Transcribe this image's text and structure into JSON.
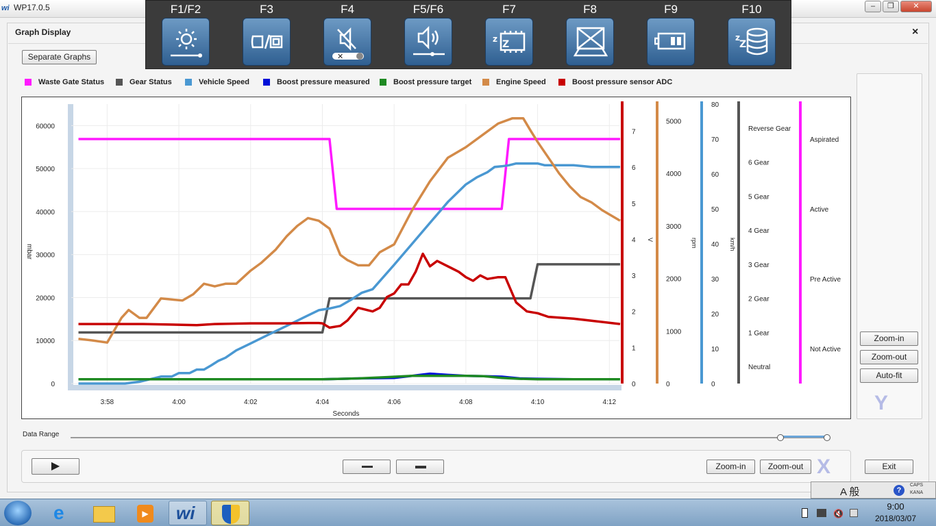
{
  "window": {
    "title": "WP17.0.5",
    "logo": "wi",
    "controls": [
      "minimize",
      "maximize",
      "close"
    ]
  },
  "fkeys": [
    {
      "key": "F1/F2",
      "icon": "brightness-icon"
    },
    {
      "key": "F3",
      "icon": "screen-mode-icon"
    },
    {
      "key": "F4",
      "icon": "sound-mute-icon"
    },
    {
      "key": "F5/F6",
      "icon": "volume-icon"
    },
    {
      "key": "F7",
      "icon": "cpu-sleep-icon"
    },
    {
      "key": "F8",
      "icon": "display-off-icon"
    },
    {
      "key": "F9",
      "icon": "battery-icon"
    },
    {
      "key": "F10",
      "icon": "disk-sleep-icon"
    }
  ],
  "panel": {
    "title": "Graph Display",
    "close": "×",
    "separate_button": "Separate Graphs"
  },
  "legend": [
    {
      "name": "Waste Gate Status",
      "color": "#ff1aff"
    },
    {
      "name": "Gear Status",
      "color": "#555555"
    },
    {
      "name": "Vehicle Speed",
      "color": "#4a98d2"
    },
    {
      "name": "Boost pressure measured",
      "color": "#0010d8"
    },
    {
      "name": "Boost pressure target",
      "color": "#1e8a22"
    },
    {
      "name": "Engine Speed",
      "color": "#d38a48"
    },
    {
      "name": "Boost pressure sensor ADC",
      "color": "#c80000"
    }
  ],
  "chart_data": {
    "type": "line",
    "xlabel": "Seconds",
    "x_ticks": [
      "3:58",
      "4:00",
      "4:02",
      "4:04",
      "4:06",
      "4:08",
      "4:10",
      "4:12"
    ],
    "x_range": [
      "3:57",
      "4:12.3"
    ],
    "grid": true,
    "legend_position": "top",
    "axes": [
      {
        "id": "mbar",
        "label": "mbar",
        "range": [
          0,
          65000
        ],
        "ticks": [
          0,
          10000,
          20000,
          30000,
          40000,
          50000,
          60000
        ],
        "side": "left",
        "color": "#222222"
      },
      {
        "id": "V",
        "label": "V",
        "range": [
          0,
          7.75
        ],
        "ticks": [
          0,
          1,
          2,
          3,
          4,
          5,
          6,
          7
        ],
        "side": "right",
        "color": "#c80000"
      },
      {
        "id": "rpm",
        "label": "rpm",
        "range": [
          0,
          5320
        ],
        "ticks": [
          0,
          1000,
          2000,
          3000,
          4000,
          5000
        ],
        "side": "right",
        "color": "#d38a48"
      },
      {
        "id": "kmh",
        "label": "km/h",
        "range": [
          0,
          80
        ],
        "ticks": [
          0,
          10,
          20,
          30,
          40,
          50,
          60,
          70,
          80
        ],
        "side": "right",
        "color": "#4a98d2"
      },
      {
        "id": "gear",
        "label": "",
        "categories": [
          "Neutral",
          "1 Gear",
          "2 Gear",
          "3 Gear",
          "4 Gear",
          "5 Gear",
          "6 Gear",
          "Reverse Gear"
        ],
        "range": [
          -0.5,
          7.7
        ],
        "side": "right",
        "color": "#555555"
      },
      {
        "id": "wg",
        "label": "",
        "categories": [
          "Not Active",
          "Pre Active",
          "Active",
          "Aspirated"
        ],
        "range": [
          -0.5,
          3.5
        ],
        "side": "right",
        "color": "#ff1aff"
      }
    ],
    "series": [
      {
        "name": "Waste Gate Status",
        "axis": "wg",
        "color": "#ff1aff",
        "x": [
          237.2,
          244.2,
          244.4,
          249.0,
          249.2,
          252.3
        ],
        "y": [
          3,
          3,
          2,
          2,
          3,
          3
        ]
      },
      {
        "name": "Gear Status",
        "axis": "gear",
        "color": "#555555",
        "x": [
          237.2,
          244.0,
          244.2,
          249.8,
          250.0,
          252.3
        ],
        "y": [
          1,
          1,
          2,
          2,
          3,
          3
        ]
      },
      {
        "name": "Vehicle Speed",
        "axis": "kmh",
        "color": "#4a98d2",
        "x": [
          237.2,
          238.0,
          238.5,
          238.9,
          239.3,
          239.5,
          239.8,
          240.0,
          240.3,
          240.5,
          240.7,
          240.9,
          241.1,
          241.3,
          241.6,
          242.0,
          242.5,
          243.0,
          243.5,
          243.9,
          244.2,
          244.5,
          244.8,
          245.1,
          245.4,
          246.0,
          246.5,
          247.0,
          247.5,
          248.0,
          248.3,
          248.6,
          248.8,
          249.0,
          249.2,
          249.4,
          249.7,
          250.0,
          250.2,
          250.5,
          250.8,
          251.0,
          251.5,
          252.3
        ],
        "y": [
          0,
          0,
          0,
          0.5,
          1.5,
          2,
          2,
          3,
          3,
          4,
          4,
          5.2,
          6.5,
          7.4,
          9.5,
          11.5,
          14,
          16.5,
          19,
          21,
          21.5,
          22.2,
          24,
          26,
          27,
          34,
          40,
          46,
          52,
          57,
          59,
          60.5,
          62,
          62.2,
          62.5,
          63,
          63,
          63,
          62.5,
          62.5,
          62.5,
          62.5,
          62,
          62
        ]
      },
      {
        "name": "Boost pressure measured",
        "axis": "mbar",
        "color": "#0010d8",
        "x": [
          237.2,
          244.0,
          245.0,
          246.0,
          246.5,
          247.0,
          247.5,
          248.0,
          248.5,
          249.0,
          249.5,
          250.0,
          251.0,
          252.3
        ],
        "y": [
          1000,
          1000,
          1200,
          1300,
          1800,
          2300,
          2000,
          1800,
          1700,
          1600,
          1200,
          1100,
          1000,
          1000
        ]
      },
      {
        "name": "Boost pressure target",
        "axis": "mbar",
        "color": "#1e8a22",
        "x": [
          237.2,
          244.0,
          245.0,
          245.8,
          246.5,
          247.2,
          248.0,
          248.5,
          249.0,
          249.5,
          250.0,
          251.0,
          252.3
        ],
        "y": [
          1000,
          1000,
          1200,
          1500,
          1800,
          1800,
          1800,
          1700,
          1300,
          1100,
          1000,
          1000,
          1000
        ]
      },
      {
        "name": "Engine Speed",
        "axis": "rpm",
        "color": "#d38a48",
        "x": [
          237.2,
          237.6,
          238.0,
          238.4,
          238.6,
          238.9,
          239.1,
          239.5,
          239.8,
          240.1,
          240.4,
          240.7,
          241.0,
          241.3,
          241.6,
          242.0,
          242.3,
          242.7,
          243.0,
          243.3,
          243.6,
          243.9,
          244.2,
          244.5,
          244.7,
          245.0,
          245.3,
          245.6,
          246.0,
          246.5,
          247.0,
          247.5,
          248.0,
          248.5,
          248.9,
          249.3,
          249.6,
          249.8,
          250.0,
          250.3,
          250.6,
          250.9,
          251.2,
          251.5,
          251.8,
          252.3
        ],
        "y": [
          850,
          820,
          780,
          1250,
          1400,
          1250,
          1250,
          1620,
          1600,
          1580,
          1700,
          1900,
          1850,
          1900,
          1900,
          2150,
          2300,
          2550,
          2800,
          3000,
          3150,
          3100,
          2950,
          2450,
          2350,
          2250,
          2250,
          2500,
          2650,
          3300,
          3850,
          4300,
          4500,
          4750,
          4950,
          5050,
          5050,
          4820,
          4600,
          4300,
          4000,
          3750,
          3550,
          3450,
          3300,
          3100
        ]
      },
      {
        "name": "Boost pressure sensor ADC",
        "axis": "V",
        "color": "#c80000",
        "x": [
          237.2,
          239.0,
          240.5,
          241.0,
          242.0,
          243.0,
          243.6,
          243.9,
          244.0,
          244.2,
          244.5,
          244.7,
          245.0,
          245.2,
          245.4,
          245.6,
          245.8,
          246.0,
          246.2,
          246.4,
          246.6,
          246.8,
          247.0,
          247.2,
          247.4,
          247.6,
          247.8,
          248.0,
          248.2,
          248.4,
          248.6,
          248.9,
          249.1,
          249.4,
          249.7,
          250.0,
          250.3,
          251.0,
          252.3
        ],
        "y": [
          1.65,
          1.65,
          1.62,
          1.65,
          1.67,
          1.67,
          1.68,
          1.68,
          1.67,
          1.55,
          1.6,
          1.75,
          2.1,
          2.05,
          2.0,
          2.1,
          2.4,
          2.5,
          2.75,
          2.75,
          3.1,
          3.6,
          3.25,
          3.4,
          3.3,
          3.2,
          3.1,
          2.95,
          2.85,
          3.0,
          2.9,
          2.95,
          2.95,
          2.25,
          2.0,
          1.95,
          1.85,
          1.8,
          1.65
        ]
      }
    ]
  },
  "side": {
    "zoom_in": "Zoom-in",
    "zoom_out": "Zoom-out",
    "auto_fit": "Auto-fit",
    "axis_letter": "Y"
  },
  "range": {
    "label": "Data Range"
  },
  "bottom": {
    "play": "▶",
    "zoom_in": "Zoom-in",
    "zoom_out": "Zoom-out",
    "axis_letter": "X",
    "exit": "Exit"
  },
  "taskbar": {
    "time": "9:00",
    "date": "2018/03/07",
    "ime": "A 般",
    "caps": "CAPS",
    "kana": "KANA"
  }
}
